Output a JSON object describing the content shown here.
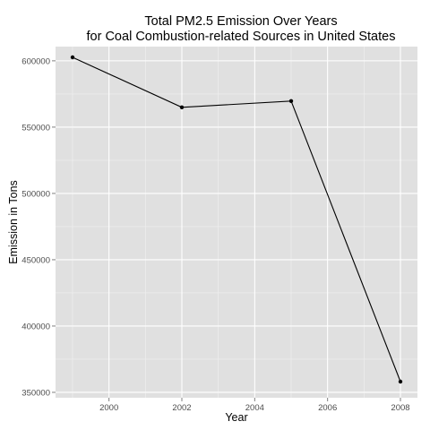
{
  "chart_data": {
    "type": "line",
    "title": [
      "Total PM2.5 Emission Over Years",
      "for Coal Combustion-related Sources in United States"
    ],
    "xlabel": "Year",
    "ylabel": "Emission in Tons",
    "x": [
      1999,
      2002,
      2005,
      2008
    ],
    "series": [
      {
        "values": [
          602624,
          564940,
          569654,
          358084
        ]
      }
    ],
    "xlim": [
      1999,
      2008
    ],
    "ylim": [
      347358,
      613350
    ],
    "xticks": [
      2000,
      2002,
      2004,
      2006,
      2008
    ],
    "xtick_labels": [
      "2000",
      "2002",
      "2004",
      "2006",
      "2008"
    ],
    "yticks": [
      350000,
      400000,
      450000,
      500000,
      550000,
      600000
    ],
    "ytick_labels": [
      "350000",
      "400000",
      "450000",
      "500000",
      "550000",
      "600000"
    ],
    "grid": true,
    "colors": {
      "panel": "#e0e0e0",
      "grid_major": "#ffffff",
      "grid_minor": "#f0f0f0",
      "line": "#000000"
    }
  }
}
